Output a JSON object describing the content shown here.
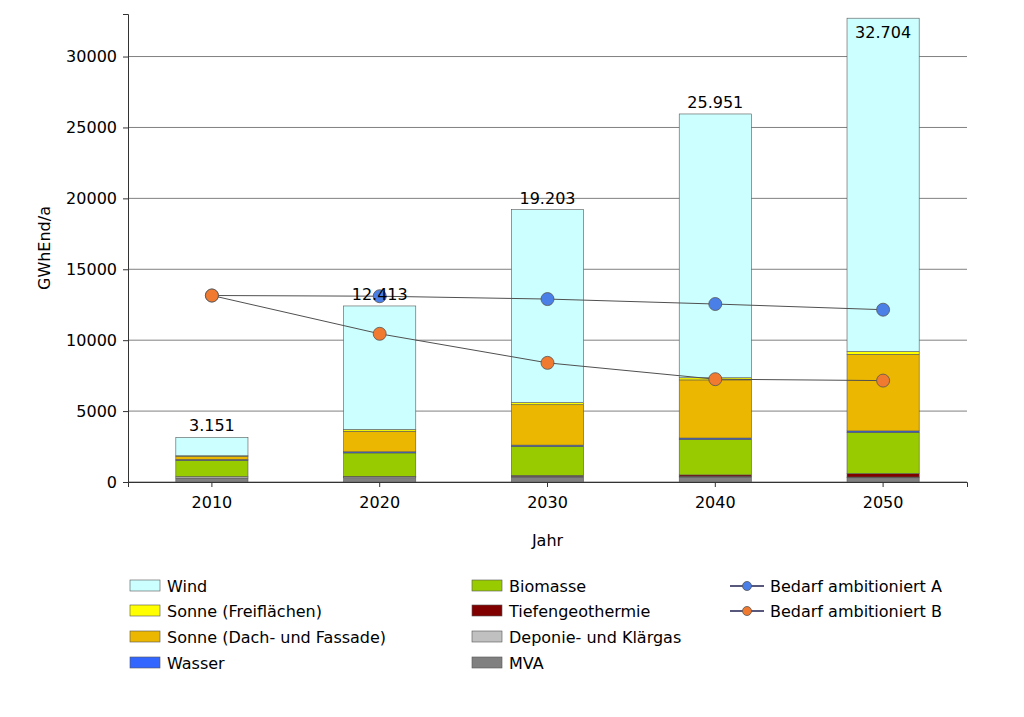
{
  "chart_data": {
    "type": "bar",
    "stacked": true,
    "grid": true,
    "legend": "bottom",
    "x_label": "Jahr",
    "y_label": "GWhEnd/a",
    "categories": [
      "2010",
      "2020",
      "2030",
      "2040",
      "2050"
    ],
    "ylim": [
      0,
      33000
    ],
    "yticks": [
      0,
      5000,
      10000,
      15000,
      20000,
      25000,
      30000
    ],
    "totals": [
      3151,
      12413,
      19203,
      25951,
      32704
    ],
    "total_labels": [
      "3.151",
      "12.413",
      "19.203",
      "25.951",
      "32.704"
    ],
    "series": [
      {
        "name": "Wind",
        "type": "bar",
        "color": "#ccffff",
        "values": [
          1301,
          8713,
          13603,
          18601,
          23504
        ]
      },
      {
        "name": "Sonne (Freiflächen)",
        "type": "bar",
        "color": "#ffff00",
        "values": [
          40,
          120,
          150,
          150,
          200
        ]
      },
      {
        "name": "Sonne (Dach- und Fassade)",
        "type": "bar",
        "color": "#ebb700",
        "values": [
          220,
          1450,
          2850,
          4100,
          5400
        ]
      },
      {
        "name": "Wasser",
        "type": "bar",
        "color": "#3366ff",
        "values": [
          60,
          80,
          90,
          100,
          100
        ]
      },
      {
        "name": "Biomasse",
        "type": "bar",
        "color": "#99cc00",
        "values": [
          1150,
          1650,
          2050,
          2500,
          2900
        ]
      },
      {
        "name": "Tiefengeothermie",
        "type": "bar",
        "color": "#800000",
        "values": [
          0,
          20,
          50,
          100,
          250
        ]
      },
      {
        "name": "Deponie- und Klärgas",
        "type": "bar",
        "color": "#c0c0c0",
        "values": [
          100,
          80,
          60,
          50,
          50
        ]
      },
      {
        "name": "MVA",
        "type": "bar",
        "color": "#808080",
        "values": [
          280,
          300,
          350,
          350,
          300
        ]
      },
      {
        "name": "Bedarf ambitioniert A",
        "type": "line",
        "marker": "circle",
        "color": "#4a7fe8",
        "values": [
          13150,
          13100,
          12900,
          12550,
          12150
        ]
      },
      {
        "name": "Bedarf ambitioniert B",
        "type": "line",
        "marker": "circle",
        "color": "#f07a30",
        "values": [
          13150,
          10450,
          8400,
          7250,
          7150
        ]
      }
    ]
  }
}
